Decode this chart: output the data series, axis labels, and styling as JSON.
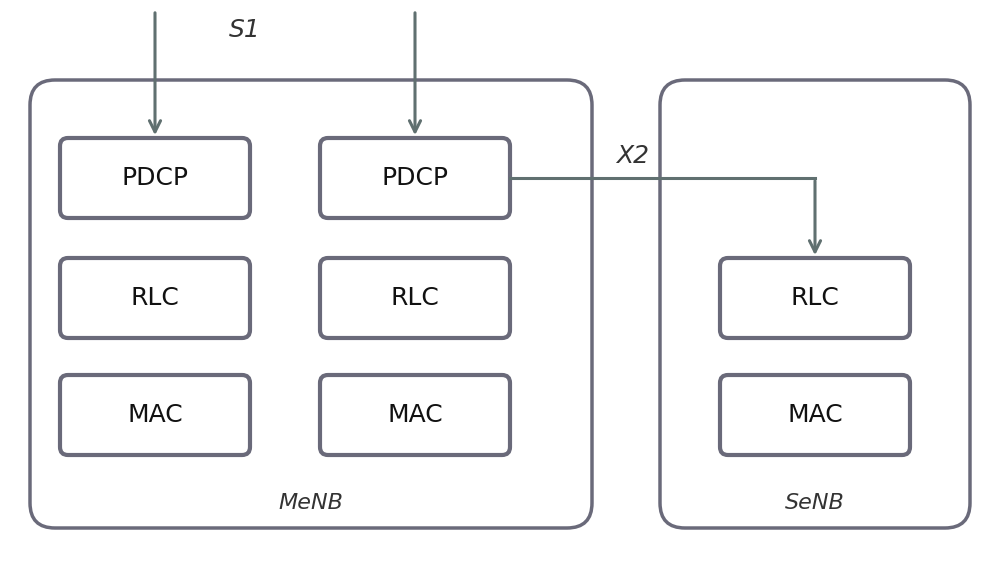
{
  "background_color": "#ffffff",
  "box_edge_color": "#6a6a7a",
  "box_edge_width": 3.0,
  "container_edge_color": "#6a6a7a",
  "container_edge_width": 2.5,
  "arrow_color": "#607070",
  "arrow_lw": 2.2,
  "label_color": "#111111",
  "italic_color": "#333333",
  "menb_label": "MeNB",
  "senb_label": "SeNB",
  "s1_label": "S1",
  "x2_label": "X2",
  "boxes_menb_col1": [
    "PDCP",
    "RLC",
    "MAC"
  ],
  "boxes_menb_col2": [
    "PDCP",
    "RLC",
    "MAC"
  ],
  "boxes_senb": [
    "RLC",
    "MAC"
  ],
  "font_size_box": 18,
  "font_size_label": 16,
  "font_size_s1x2": 18
}
